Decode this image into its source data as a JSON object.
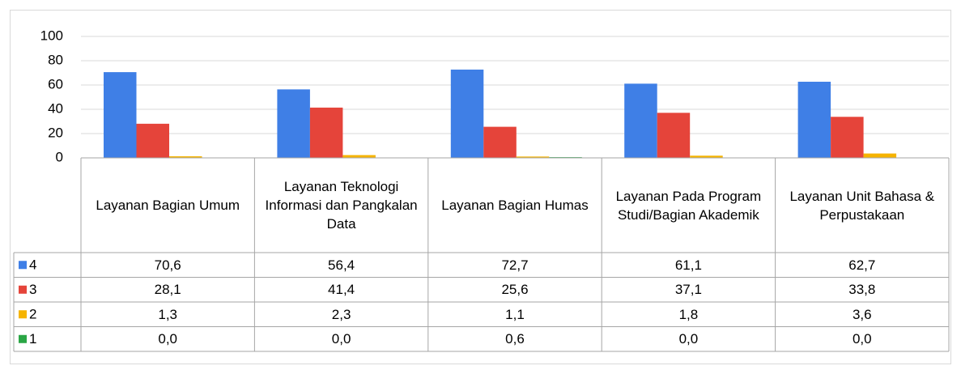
{
  "chart_data": {
    "type": "bar",
    "categories": [
      "Layanan Bagian Umum",
      "Layanan Teknologi Informasi dan Pangkalan Data",
      "Layanan Bagian Humas",
      "Layanan Pada Program Studi/Bagian Akademik",
      "Layanan Unit Bahasa & Perpustakaan"
    ],
    "series": [
      {
        "name": "4",
        "color": "#3f7fe6",
        "values": [
          70.6,
          56.4,
          72.7,
          61.1,
          62.7
        ],
        "value_labels": [
          "70,6",
          "56,4",
          "72,7",
          "61,1",
          "62,7"
        ]
      },
      {
        "name": "3",
        "color": "#e5443a",
        "values": [
          28.1,
          41.4,
          25.6,
          37.1,
          33.8
        ],
        "value_labels": [
          "28,1",
          "41,4",
          "25,6",
          "37,1",
          "33,8"
        ]
      },
      {
        "name": "2",
        "color": "#f6b400",
        "values": [
          1.3,
          2.3,
          1.1,
          1.8,
          3.6
        ],
        "value_labels": [
          "1,3",
          "2,3",
          "1,1",
          "1,8",
          "3,6"
        ]
      },
      {
        "name": "1",
        "color": "#2aa645",
        "values": [
          0,
          0,
          0.6,
          0,
          0
        ],
        "value_labels": [
          "0,0",
          "0,0",
          "0,6",
          "0,0",
          "0,0"
        ]
      }
    ],
    "ylim": [
      0,
      100
    ],
    "yticks": [
      0,
      20,
      40,
      60,
      80,
      100
    ],
    "grid": true
  }
}
